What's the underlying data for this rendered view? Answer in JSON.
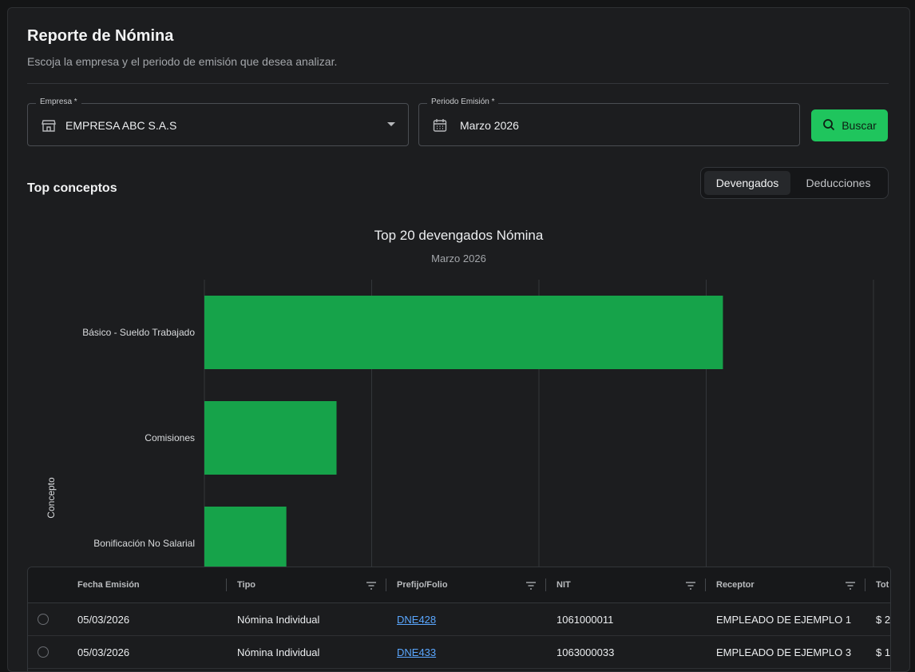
{
  "header": {
    "title": "Reporte de Nómina",
    "subtitle": "Escoja la empresa y el periodo de emisión que desea analizar."
  },
  "filters": {
    "empresa_label": "Empresa *",
    "empresa_value": "EMPRESA ABC S.A.S",
    "periodo_label": "Periodo Emisión *",
    "periodo_value": "Marzo 2026",
    "search_button": "Buscar"
  },
  "section": {
    "title": "Top conceptos",
    "tabs": [
      "Devengados",
      "Deducciones"
    ],
    "active_tab": "Devengados"
  },
  "colors": {
    "accent": "#1fc55d",
    "bar": "#16a34a",
    "link": "#5aa7ff"
  },
  "chart_data": {
    "type": "bar",
    "orientation": "horizontal",
    "title": "Top 20 devengados Nómina",
    "subtitle": "Marzo 2026",
    "ylabel": "Concepto",
    "categories": [
      "Básico - Sueldo Trabajado",
      "Comisiones",
      "Bonificación No Salarial"
    ],
    "values": [
      3.1,
      0.79,
      0.49
    ],
    "xlim": [
      0,
      4
    ],
    "grid": true,
    "truncated": true
  },
  "table": {
    "columns": [
      "Fecha Emisión",
      "Tipo",
      "Prefijo/Folio",
      "NIT",
      "Receptor",
      "Tot"
    ],
    "rows": [
      [
        "05/03/2026",
        "Nómina Individual",
        "DNE428",
        "1061000011",
        "EMPLEADO DE EJEMPLO 1",
        "$ 2"
      ],
      [
        "05/03/2026",
        "Nómina Individual",
        "DNE433",
        "1063000033",
        "EMPLEADO DE EJEMPLO 3",
        "$ 1"
      ]
    ]
  }
}
